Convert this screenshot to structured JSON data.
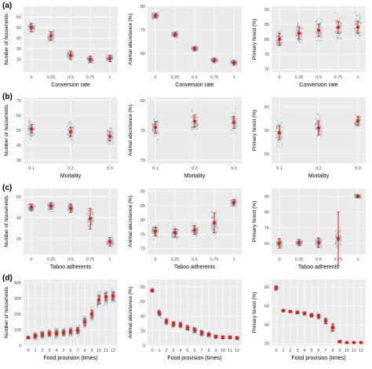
{
  "panel_labels": [
    "(a)",
    "(b)",
    "(c)",
    "(d)"
  ],
  "chart_data": [
    {
      "type": "scatter",
      "row": 0,
      "col": 0,
      "xlabel": "Conversion rate",
      "ylabel": "Number of households",
      "categories": [
        "0",
        "0.25",
        "0.5",
        "0.75",
        "1"
      ],
      "ylim": [
        8,
        70
      ],
      "yticks": [
        20,
        30,
        40,
        50,
        60
      ],
      "means": [
        50,
        42,
        24,
        20,
        21
      ],
      "ci": [
        4,
        4,
        4,
        3,
        3
      ],
      "spread": [
        6,
        8,
        5,
        4,
        4
      ]
    },
    {
      "type": "scatter",
      "row": 0,
      "col": 1,
      "xlabel": "Conversion rate",
      "ylabel": "Animal abundance (%)",
      "categories": [
        "0",
        "0.25",
        "0.5",
        "0.75",
        "1"
      ],
      "ylim": [
        52,
        80
      ],
      "yticks": [
        60,
        70,
        80
      ],
      "means": [
        76,
        68,
        62,
        57,
        56
      ],
      "ci": [
        1,
        1,
        1,
        1,
        1
      ],
      "spread": [
        2,
        2,
        1.5,
        1.5,
        1.5
      ]
    },
    {
      "type": "scatter",
      "row": 0,
      "col": 2,
      "xlabel": "Conversion rate",
      "ylabel": "Primary forest (%)",
      "categories": [
        "0",
        "0.25",
        "0.5",
        "0.75",
        "1"
      ],
      "ylim": [
        69,
        91
      ],
      "yticks": [
        70,
        75,
        80,
        85,
        90
      ],
      "means": [
        80,
        82,
        83,
        84,
        84
      ],
      "ci": [
        2,
        2,
        2,
        2,
        2
      ],
      "spread": [
        4,
        5,
        6,
        6,
        6
      ]
    },
    {
      "type": "scatter",
      "row": 1,
      "col": 0,
      "xlabel": "Mortality",
      "ylabel": "Number of households",
      "categories": [
        "0.1",
        "0.2",
        "0.3"
      ],
      "ylim": [
        28,
        72
      ],
      "yticks": [
        30,
        40,
        50,
        60,
        70
      ],
      "means": [
        51,
        49,
        46
      ],
      "ci": [
        3,
        3,
        3
      ],
      "spread": [
        10,
        12,
        9
      ]
    },
    {
      "type": "scatter",
      "row": 1,
      "col": 1,
      "xlabel": "Mortality",
      "ylabel": "Animal abundance (%)",
      "categories": [
        "0.1",
        "0.2",
        "0.3"
      ],
      "ylim": [
        69.5,
        80.5
      ],
      "yticks": [
        70,
        75,
        80
      ],
      "means": [
        75.5,
        76.5,
        76.3
      ],
      "ci": [
        1,
        1,
        1
      ],
      "spread": [
        2.5,
        3,
        2.5
      ]
    },
    {
      "type": "scatter",
      "row": 1,
      "col": 2,
      "xlabel": "Mortality",
      "ylabel": "Primary forest (%)",
      "categories": [
        "0.1",
        "0.2",
        "0.3"
      ],
      "ylim": [
        53,
        67
      ],
      "yticks": [
        55,
        60,
        65
      ],
      "means": [
        59.5,
        60.5,
        62
      ],
      "ci": [
        1.5,
        1.5,
        1
      ],
      "spread": [
        4,
        4,
        1.5
      ]
    },
    {
      "type": "scatter",
      "row": 2,
      "col": 0,
      "xlabel": "Taboo adherents",
      "ylabel": "Number of households",
      "categories": [
        "0",
        "0.25",
        "0.5",
        "0.75",
        "1"
      ],
      "ylim": [
        5,
        68
      ],
      "yticks": [
        20,
        40,
        60
      ],
      "means": [
        50,
        51,
        49,
        39,
        17
      ],
      "ci": [
        3,
        3,
        4,
        10,
        4
      ],
      "spread": [
        6,
        6,
        8,
        14,
        6
      ]
    },
    {
      "type": "scatter",
      "row": 2,
      "col": 1,
      "xlabel": "Taboo adherents",
      "ylabel": "Animal abundance (%)",
      "categories": [
        "0",
        "0.25",
        "0.5",
        "0.75",
        "1"
      ],
      "ylim": [
        68,
        91
      ],
      "yticks": [
        70,
        75,
        80,
        85,
        90
      ],
      "means": [
        76,
        75.5,
        76.5,
        79,
        86
      ],
      "ci": [
        1.5,
        1.5,
        1.5,
        3.5,
        1
      ],
      "spread": [
        3,
        3,
        3,
        6,
        2
      ]
    },
    {
      "type": "scatter",
      "row": 2,
      "col": 2,
      "xlabel": "Taboo adherents",
      "ylabel": "Primary forest (%)",
      "categories": [
        "0",
        "0.25",
        "0.5",
        "0.75",
        "1"
      ],
      "ylim": [
        53,
        95
      ],
      "yticks": [
        60,
        70,
        80,
        90
      ],
      "means": [
        60,
        60.5,
        60.5,
        63,
        90
      ],
      "ci": [
        3,
        2,
        3,
        17,
        1
      ],
      "spread": [
        5,
        3,
        5,
        10,
        2
      ]
    },
    {
      "type": "scatter",
      "row": 3,
      "col": 0,
      "xlabel": "Food provision (times)",
      "ylabel": "Number of households",
      "categories": [
        "0",
        "1",
        "2",
        "3",
        "4",
        "5",
        "6",
        "7",
        "8",
        "9",
        "10",
        "11",
        "12"
      ],
      "ylim": [
        0,
        420
      ],
      "yticks": [
        0,
        100,
        200,
        300,
        400
      ],
      "means": [
        50,
        60,
        68,
        75,
        78,
        82,
        88,
        95,
        150,
        200,
        290,
        310,
        315
      ],
      "ci": [
        6,
        12,
        14,
        14,
        14,
        14,
        14,
        18,
        22,
        25,
        25,
        25,
        25
      ],
      "spread": [
        15,
        35,
        40,
        40,
        40,
        40,
        40,
        40,
        50,
        60,
        70,
        70,
        70
      ]
    },
    {
      "type": "scatter",
      "row": 3,
      "col": 1,
      "xlabel": "Food provision (times)",
      "ylabel": "Animal abundance (%)",
      "categories": [
        "0",
        "1",
        "2",
        "3",
        "4",
        "5",
        "6",
        "7",
        "8",
        "9",
        "10",
        "11",
        "12"
      ],
      "ylim": [
        0,
        90
      ],
      "yticks": [
        0,
        20,
        40,
        60,
        80
      ],
      "means": [
        75,
        44,
        33,
        29,
        28,
        24,
        21,
        17,
        15,
        12,
        11,
        11,
        10
      ],
      "ci": [
        2,
        3,
        3,
        3,
        3,
        3,
        3,
        3,
        2,
        2,
        2,
        2,
        2
      ],
      "spread": [
        4,
        8,
        7,
        6,
        6,
        6,
        6,
        6,
        5,
        4,
        3,
        3,
        3
      ]
    },
    {
      "type": "scatter",
      "row": 3,
      "col": 2,
      "xlabel": "Food provision (times)",
      "ylabel": "Primary forest (%)",
      "categories": [
        "0",
        "1",
        "2",
        "3",
        "4",
        "5",
        "6",
        "7",
        "8",
        "9",
        "10",
        "11",
        "12"
      ],
      "ylim": [
        18,
        88
      ],
      "yticks": [
        20,
        40,
        60,
        80
      ],
      "means": [
        79,
        55,
        54,
        53,
        52,
        50,
        49,
        44,
        37,
        22,
        21,
        21,
        21
      ],
      "ci": [
        2,
        1,
        1,
        1,
        1,
        2,
        2,
        3,
        4,
        1,
        0.5,
        0.5,
        0.5
      ],
      "spread": [
        4,
        2,
        2,
        3,
        3,
        3,
        4,
        5,
        6,
        2,
        1,
        1,
        1
      ]
    }
  ]
}
